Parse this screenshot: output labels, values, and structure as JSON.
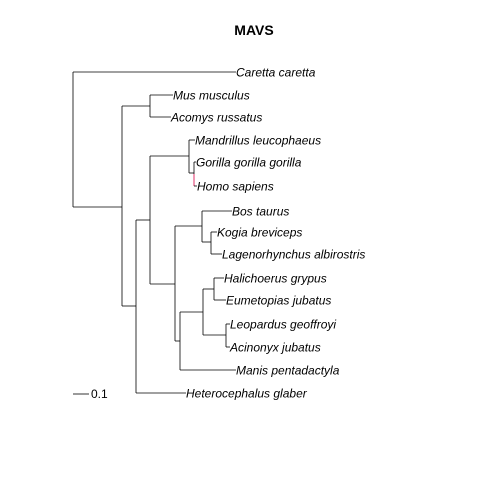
{
  "title": "MAVS",
  "scale_bar": {
    "label": "0.1"
  },
  "highlight_color": "#e0306a",
  "taxa": [
    "Caretta caretta",
    "Mus musculus",
    "Acomys russatus",
    "Mandrillus leucophaeus",
    "Gorilla gorilla gorilla",
    "Homo sapiens",
    "Bos taurus",
    "Kogia breviceps",
    "Lagenorhynchus albirostris",
    "Halichoerus grypus",
    "Eumetopias jubatus",
    "Leopardus geoffroyi",
    "Acinonyx jubatus",
    "Manis pentadactyla",
    "Heterocephalus glaber"
  ]
}
